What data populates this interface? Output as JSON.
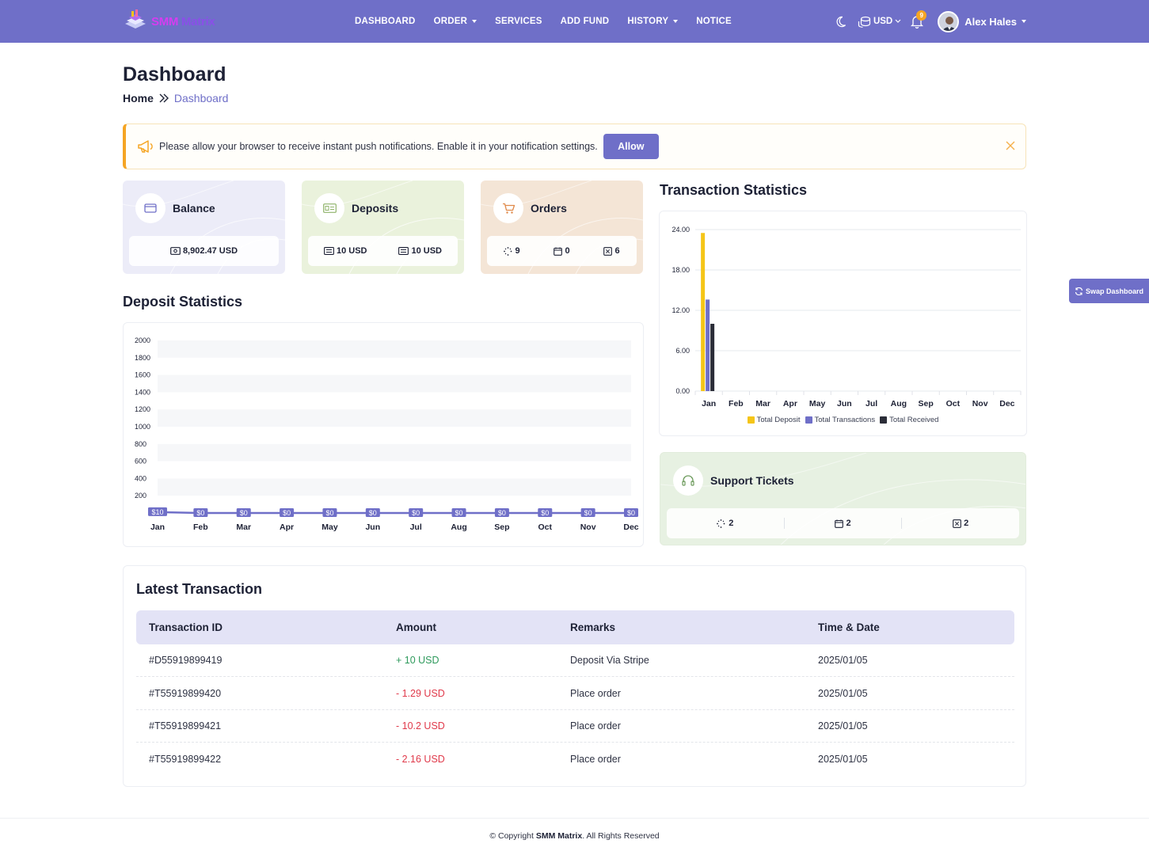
{
  "brand": {
    "part1": "SMM",
    "part2": "Matrix"
  },
  "nav": {
    "items": [
      {
        "label": "DASHBOARD",
        "dropdown": false
      },
      {
        "label": "ORDER",
        "dropdown": true
      },
      {
        "label": "SERVICES",
        "dropdown": false
      },
      {
        "label": "ADD FUND",
        "dropdown": false
      },
      {
        "label": "HISTORY",
        "dropdown": true
      },
      {
        "label": "NOTICE",
        "dropdown": false
      }
    ],
    "currency": "USD",
    "notification_count": "9",
    "user_name": "Alex Hales"
  },
  "page": {
    "title": "Dashboard",
    "breadcrumb_home": "Home",
    "breadcrumb_current": "Dashboard"
  },
  "alert": {
    "text": "Please allow your browser to receive instant push notifications. Enable it in your notification settings.",
    "button": "Allow"
  },
  "cards": {
    "balance": {
      "title": "Balance",
      "value": "8,902.47 USD"
    },
    "deposits": {
      "title": "Deposits",
      "value1": "10 USD",
      "value2": "10 USD"
    },
    "orders": {
      "title": "Orders",
      "pending": "9",
      "processing": "0",
      "cancelled": "6"
    }
  },
  "swap_button": "Swap Dashboard",
  "deposit_stats": {
    "title": "Deposit Statistics",
    "chart_data": {
      "type": "area",
      "categories": [
        "Jan",
        "Feb",
        "Mar",
        "Apr",
        "May",
        "Jun",
        "Jul",
        "Aug",
        "Sep",
        "Oct",
        "Nov",
        "Dec"
      ],
      "values": [
        10,
        0,
        0,
        0,
        0,
        0,
        0,
        0,
        0,
        0,
        0,
        0
      ],
      "data_labels": [
        "$10",
        "$0",
        "$0",
        "$0",
        "$0",
        "$0",
        "$0",
        "$0",
        "$0",
        "$0",
        "$0",
        "$0"
      ],
      "yticks": [
        200,
        400,
        600,
        800,
        1000,
        1200,
        1400,
        1600,
        1800,
        2000
      ],
      "ylim": [
        0,
        2000
      ],
      "color": "#6f6fc8"
    }
  },
  "tx_stats": {
    "title": "Transaction Statistics",
    "chart_data": {
      "type": "bar",
      "categories": [
        "Jan",
        "Feb",
        "Mar",
        "Apr",
        "May",
        "Jun",
        "Jul",
        "Aug",
        "Sep",
        "Oct",
        "Nov",
        "Dec"
      ],
      "series": [
        {
          "name": "Total Deposit",
          "color": "#f5c518",
          "values": [
            23.5,
            0,
            0,
            0,
            0,
            0,
            0,
            0,
            0,
            0,
            0,
            0
          ]
        },
        {
          "name": "Total Transactions",
          "color": "#6f6fc8",
          "values": [
            13.6,
            0,
            0,
            0,
            0,
            0,
            0,
            0,
            0,
            0,
            0,
            0
          ]
        },
        {
          "name": "Total Received",
          "color": "#2b2d38",
          "values": [
            10,
            0,
            0,
            0,
            0,
            0,
            0,
            0,
            0,
            0,
            0,
            0
          ]
        }
      ],
      "yticks": [
        "0.00",
        "6.00",
        "12.00",
        "18.00",
        "24.00"
      ],
      "ylim": [
        0,
        24
      ],
      "legend": "bottom"
    }
  },
  "support": {
    "title": "Support Tickets",
    "pending": "2",
    "answered": "2",
    "closed": "2"
  },
  "latest": {
    "title": "Latest Transaction",
    "headers": {
      "id": "Transaction ID",
      "amount": "Amount",
      "remarks": "Remarks",
      "date": "Time & Date"
    },
    "rows": [
      {
        "id": "#D55919899419",
        "amount": "+ 10 USD",
        "type": "pos",
        "remarks": "Deposit Via Stripe",
        "date": "2025/01/05"
      },
      {
        "id": "#T55919899420",
        "amount": "- 1.29 USD",
        "type": "neg",
        "remarks": "Place order",
        "date": "2025/01/05"
      },
      {
        "id": "#T55919899421",
        "amount": "- 10.2 USD",
        "type": "neg",
        "remarks": "Place order",
        "date": "2025/01/05"
      },
      {
        "id": "#T55919899422",
        "amount": "- 2.16 USD",
        "type": "neg",
        "remarks": "Place order",
        "date": "2025/01/05"
      }
    ]
  },
  "footer": {
    "prefix": "© Copyright",
    "brand": "SMM Matrix",
    "suffix": ". All Rights Reserved"
  }
}
